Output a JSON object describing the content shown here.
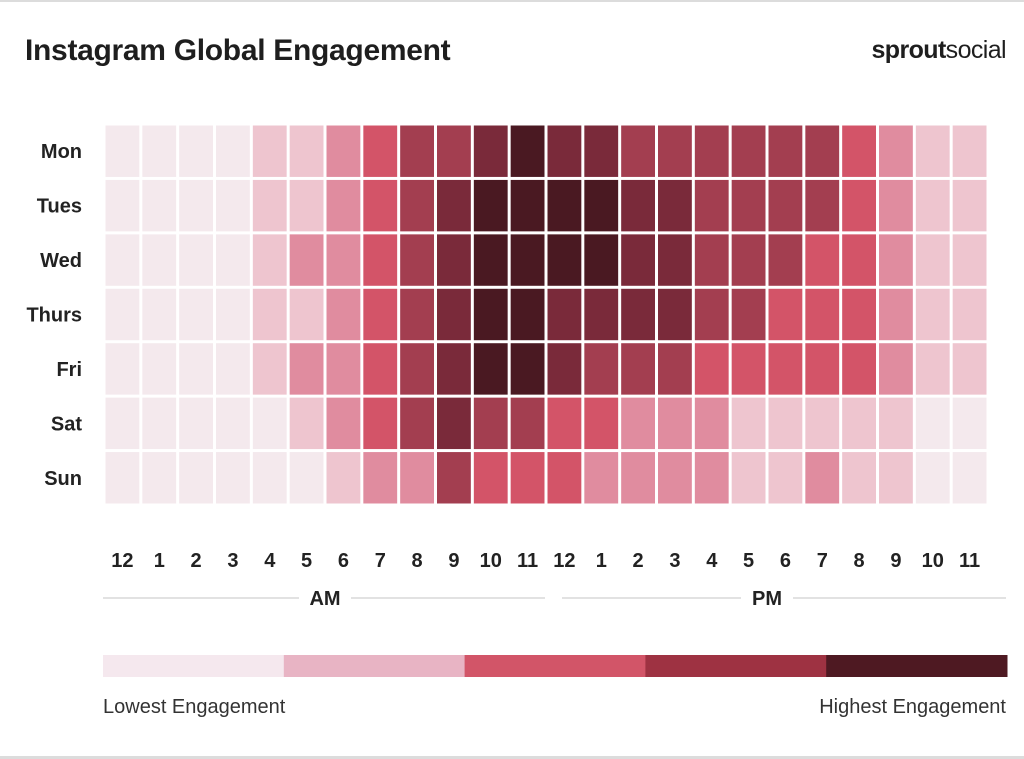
{
  "header": {
    "title": "Instagram Global Engagement",
    "brand_bold": "sprout",
    "brand_regular": "social"
  },
  "colors": {
    "levels": [
      "#f4e9ed",
      "#eec5cf",
      "#e08c9f",
      "#d35468",
      "#a33e50",
      "#7a2a3a",
      "#4a1922"
    ],
    "legend": [
      "#f5e8ee",
      "#e8b4c4",
      "#d25568",
      "#9e3242",
      "#4e1922"
    ],
    "grid_line": "#ffffff",
    "divider": "#d9d9d9"
  },
  "chart_data": {
    "type": "heatmap",
    "title": "Instagram Global Engagement",
    "rows": [
      "Mon",
      "Tues",
      "Wed",
      "Thurs",
      "Fri",
      "Sat",
      "Sun"
    ],
    "columns": [
      "12",
      "1",
      "2",
      "3",
      "4",
      "5",
      "6",
      "7",
      "8",
      "9",
      "10",
      "11",
      "12",
      "1",
      "2",
      "3",
      "4",
      "5",
      "6",
      "7",
      "8",
      "9",
      "10",
      "11"
    ],
    "column_groups": [
      {
        "label": "AM",
        "start": 0,
        "end": 11
      },
      {
        "label": "PM",
        "start": 12,
        "end": 23
      }
    ],
    "scale": {
      "min": 0,
      "max": 6
    },
    "values": [
      [
        0,
        0,
        0,
        0,
        1,
        1,
        2,
        3,
        4,
        4,
        5,
        6,
        5,
        5,
        4,
        4,
        4,
        4,
        4,
        4,
        3,
        2,
        1,
        1
      ],
      [
        0,
        0,
        0,
        0,
        1,
        1,
        2,
        3,
        4,
        5,
        6,
        6,
        6,
        6,
        5,
        5,
        4,
        4,
        4,
        4,
        3,
        2,
        1,
        1
      ],
      [
        0,
        0,
        0,
        0,
        1,
        2,
        2,
        3,
        4,
        5,
        6,
        6,
        6,
        6,
        5,
        5,
        4,
        4,
        4,
        3,
        3,
        2,
        1,
        1
      ],
      [
        0,
        0,
        0,
        0,
        1,
        1,
        2,
        3,
        4,
        5,
        6,
        6,
        5,
        5,
        5,
        5,
        4,
        4,
        3,
        3,
        3,
        2,
        1,
        1
      ],
      [
        0,
        0,
        0,
        0,
        1,
        2,
        2,
        3,
        4,
        5,
        6,
        6,
        5,
        4,
        4,
        4,
        3,
        3,
        3,
        3,
        3,
        2,
        1,
        1
      ],
      [
        0,
        0,
        0,
        0,
        0,
        1,
        2,
        3,
        4,
        5,
        4,
        4,
        3,
        3,
        2,
        2,
        2,
        1,
        1,
        1,
        1,
        1,
        0,
        0
      ],
      [
        0,
        0,
        0,
        0,
        0,
        0,
        1,
        2,
        2,
        4,
        3,
        3,
        3,
        2,
        2,
        2,
        2,
        1,
        1,
        2,
        1,
        1,
        0,
        0
      ]
    ],
    "legend": {
      "low_label": "Lowest Engagement",
      "high_label": "Highest Engagement",
      "steps": 5
    }
  }
}
